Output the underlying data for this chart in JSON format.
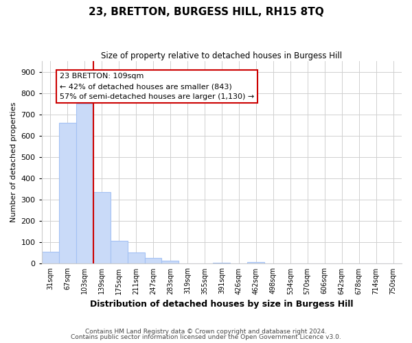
{
  "title": "23, BRETTON, BURGESS HILL, RH15 8TQ",
  "subtitle": "Size of property relative to detached houses in Burgess Hill",
  "xlabel": "Distribution of detached houses by size in Burgess Hill",
  "ylabel": "Number of detached properties",
  "bin_labels": [
    "31sqm",
    "67sqm",
    "103sqm",
    "139sqm",
    "175sqm",
    "211sqm",
    "247sqm",
    "283sqm",
    "319sqm",
    "355sqm",
    "391sqm",
    "426sqm",
    "462sqm",
    "498sqm",
    "534sqm",
    "570sqm",
    "606sqm",
    "642sqm",
    "678sqm",
    "714sqm",
    "750sqm"
  ],
  "bin_values": [
    55,
    660,
    750,
    335,
    108,
    52,
    27,
    14,
    0,
    0,
    5,
    0,
    9,
    0,
    0,
    0,
    0,
    0,
    0,
    0,
    0
  ],
  "bar_color": "#c9daf8",
  "bar_edge_color": "#a4c2f4",
  "vline_x_index": 2.5,
  "vline_color": "#cc0000",
  "annotation_title": "23 BRETTON: 109sqm",
  "annotation_line1": "← 42% of detached houses are smaller (843)",
  "annotation_line2": "57% of semi-detached houses are larger (1,130) →",
  "annotation_box_color": "#cc0000",
  "ylim": [
    0,
    950
  ],
  "yticks": [
    0,
    100,
    200,
    300,
    400,
    500,
    600,
    700,
    800,
    900
  ],
  "footer1": "Contains HM Land Registry data © Crown copyright and database right 2024.",
  "footer2": "Contains public sector information licensed under the Open Government Licence v3.0.",
  "background_color": "#ffffff",
  "grid_color": "#d0d0d0"
}
